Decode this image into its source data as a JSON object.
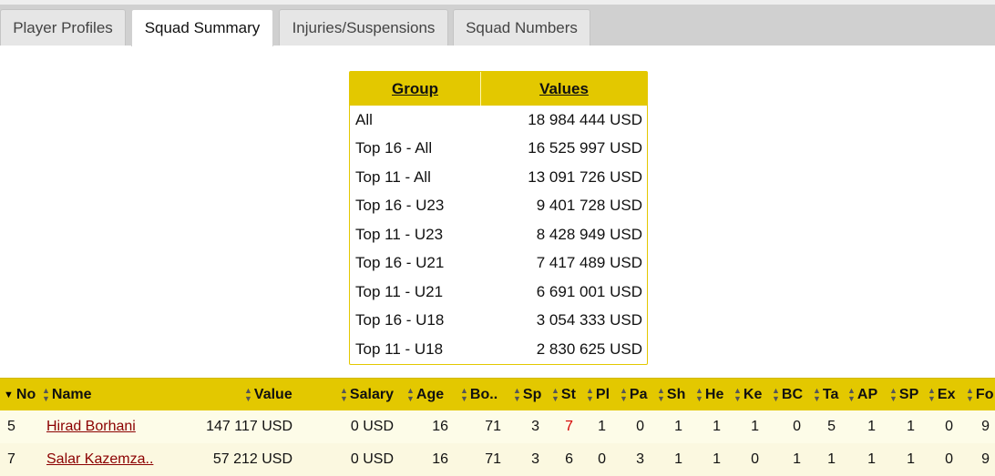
{
  "tabs": [
    {
      "label": "Player Profiles",
      "active": false
    },
    {
      "label": "Squad Summary",
      "active": true
    },
    {
      "label": "Injuries/Suspensions",
      "active": false
    },
    {
      "label": "Squad Numbers",
      "active": false
    }
  ],
  "summary": {
    "header_group": "Group",
    "header_values": "Values",
    "rows": [
      {
        "group": "All",
        "value": "18 984 444 USD"
      },
      {
        "group": "Top 16 - All",
        "value": "16 525 997 USD"
      },
      {
        "group": "Top 11 - All",
        "value": "13 091 726 USD"
      },
      {
        "group": "Top 16 - U23",
        "value": "9 401 728 USD"
      },
      {
        "group": "Top 11 - U23",
        "value": "8 428 949 USD"
      },
      {
        "group": "Top 16 - U21",
        "value": "7 417 489 USD"
      },
      {
        "group": "Top 11 - U21",
        "value": "6 691 001 USD"
      },
      {
        "group": "Top 16 - U18",
        "value": "3 054 333 USD"
      },
      {
        "group": "Top 11 - U18",
        "value": "2 830 625 USD"
      }
    ]
  },
  "players": {
    "headers": [
      "No",
      "Name",
      "Value",
      "Salary",
      "Age",
      "Bo..",
      "Sp",
      "St",
      "Pl",
      "Pa",
      "Sh",
      "He",
      "Ke",
      "BC",
      "Ta",
      "AP",
      "SP",
      "Ex",
      "Fo"
    ],
    "rows": [
      {
        "no": "5",
        "name": "Hirad Borhani",
        "value": "147 117 USD",
        "salary": "0 USD",
        "age": "16",
        "bo": "71",
        "sp": "3",
        "st": "7",
        "pl": "1",
        "pa": "0",
        "sh": "1",
        "he": "1",
        "ke": "1",
        "bc": "0",
        "ta": "5",
        "ap": "1",
        "spx": "1",
        "ex": "0",
        "fo": "9"
      },
      {
        "no": "7",
        "name": "Salar Kazemza..",
        "value": "57 212 USD",
        "salary": "0 USD",
        "age": "16",
        "bo": "71",
        "sp": "3",
        "st": "6",
        "pl": "0",
        "pa": "3",
        "sh": "1",
        "he": "1",
        "ke": "0",
        "bc": "1",
        "ta": "1",
        "ap": "1",
        "spx": "1",
        "ex": "0",
        "fo": "9"
      }
    ]
  },
  "colors": {
    "accent": "#e3c800",
    "link": "#8b0000",
    "highlight": "#d40000"
  }
}
